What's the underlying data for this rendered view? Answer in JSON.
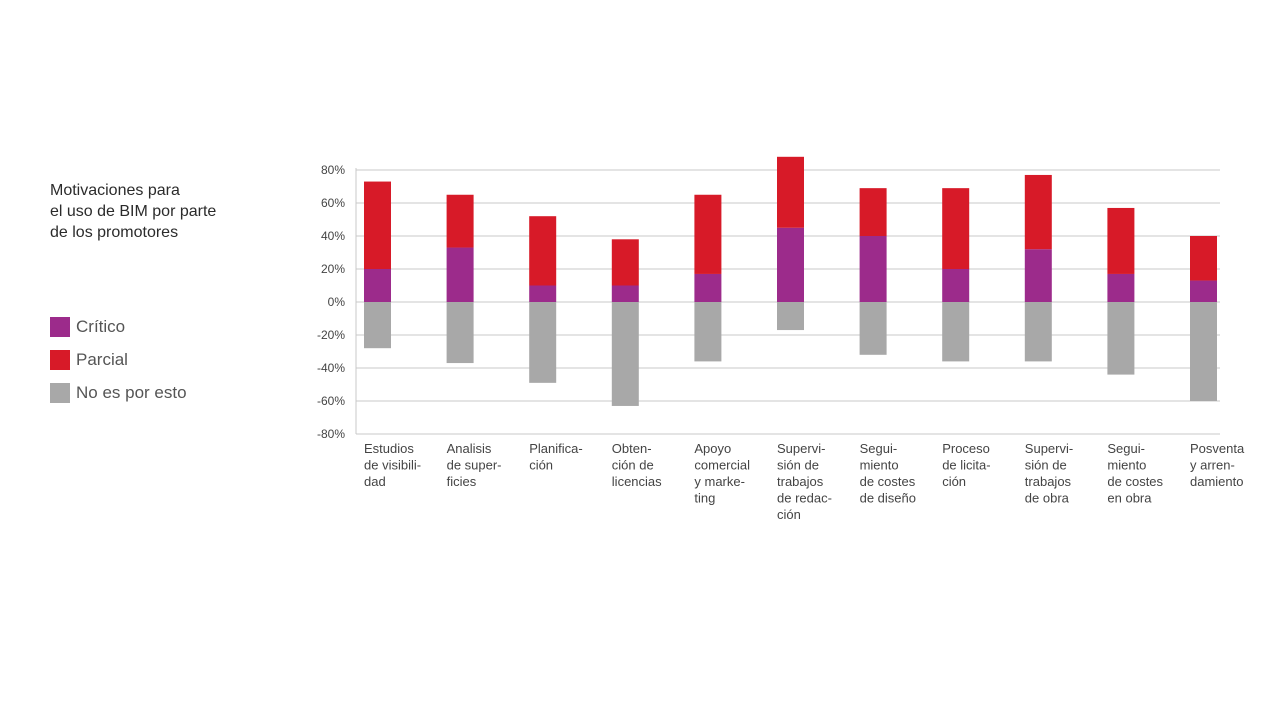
{
  "title_lines": [
    "Motivaciones para",
    "el uso de BIM por parte",
    "de los promotores"
  ],
  "legend": [
    {
      "label": "Crítico",
      "color": "#9c2b8b"
    },
    {
      "label": "Parcial",
      "color": "#d71a28"
    },
    {
      "label": "No es por esto",
      "color": "#a8a8a8"
    }
  ],
  "chart_data": {
    "type": "bar",
    "stacked": true,
    "categories": [
      [
        "Estudios",
        "de visibili-",
        "dad"
      ],
      [
        "Analisis",
        "de super-",
        "ficies"
      ],
      [
        "Planifica-",
        "ción"
      ],
      [
        "Obten-",
        "ción de",
        "licencias"
      ],
      [
        "Apoyo",
        "comercial",
        "y marke-",
        "ting"
      ],
      [
        "Supervi-",
        "sión de",
        "trabajos",
        "de redac-",
        "ción"
      ],
      [
        "Segui-",
        "miento",
        "de costes",
        "de diseño"
      ],
      [
        "Proceso",
        "de licita-",
        "ción"
      ],
      [
        "Supervi-",
        "sión de",
        "trabajos",
        "de obra"
      ],
      [
        "Segui-",
        "miento",
        "de costes",
        "en obra"
      ],
      [
        "Posventa",
        "y arren-",
        "damiento"
      ]
    ],
    "series": [
      {
        "name": "Crítico",
        "color": "#9c2b8b",
        "values": [
          20,
          33,
          10,
          10,
          17,
          45,
          40,
          20,
          32,
          17,
          13
        ]
      },
      {
        "name": "Parcial",
        "color": "#d71a28",
        "values": [
          53,
          32,
          42,
          28,
          48,
          43,
          29,
          49,
          45,
          40,
          27
        ]
      },
      {
        "name": "No es por esto",
        "color": "#a8a8a8",
        "values": [
          -28,
          -37,
          -49,
          -63,
          -36,
          -17,
          -32,
          -36,
          -36,
          -44,
          -60
        ]
      }
    ],
    "ylim": [
      -80,
      80
    ],
    "yticks": [
      80,
      60,
      40,
      20,
      0,
      -20,
      -40,
      -60,
      -80
    ],
    "ytick_labels": [
      "80%",
      "60%",
      "40%",
      "20%",
      "0%",
      "-20%",
      "-40%",
      "-60%",
      "-80%"
    ],
    "grid": true,
    "legend_position": "left"
  }
}
